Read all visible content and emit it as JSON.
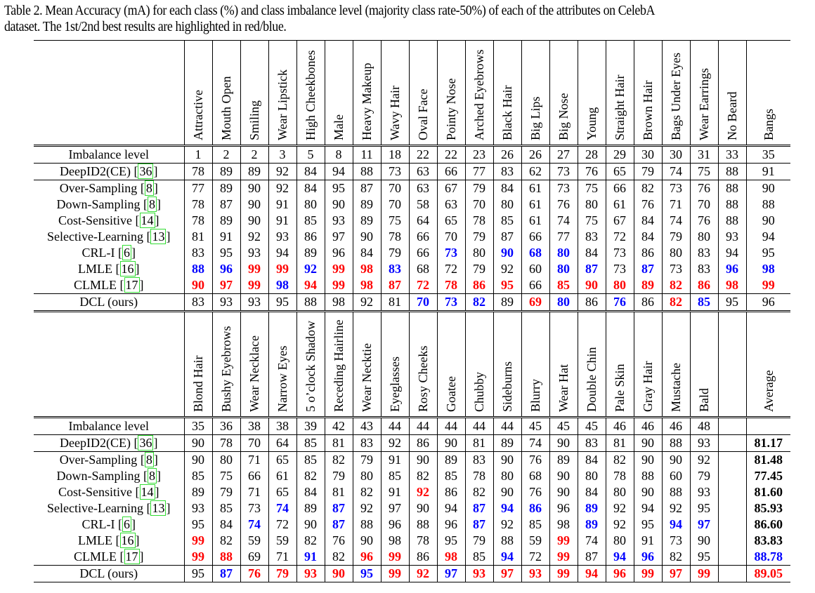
{
  "caption": {
    "line1": "Table 2. Mean Accuracy (mA) for each class (%) and class imbalance level (majority class rate-50%) of each of the attributes on CelebA",
    "line2": "dataset. The 1st/2nd best results are highlighted in red/blue."
  },
  "colors": {
    "first_best": "#ff0000",
    "second_best": "#0000ff",
    "citation_box": "#33dd33"
  },
  "tables": [
    {
      "attributes": [
        "Attractive",
        "Mouth Open",
        "Smiling",
        "Wear Lipstick",
        "High Cheekbones",
        "Male",
        "Heavy Makeup",
        "Wavy Hair",
        "Oval Face",
        "Pointy Nose",
        "Arched Eyebrows",
        "Black Hair",
        "Big Lips",
        "Big Nose",
        "Young",
        "Straight Hair",
        "Brown Hair",
        "Bags Under Eyes",
        "Wear Earrings",
        "No Beard",
        "Bangs"
      ],
      "imbalance": {
        "label": "Imbalance level",
        "values": [
          "1",
          "2",
          "2",
          "3",
          "5",
          "8",
          "11",
          "18",
          "22",
          "22",
          "23",
          "26",
          "26",
          "27",
          "28",
          "29",
          "30",
          "30",
          "31",
          "33",
          "35"
        ]
      },
      "rows": [
        {
          "name": "DeepID2(CE) ",
          "ref": "36",
          "values": [
            "78",
            "89",
            "89",
            "92",
            "84",
            "94",
            "88",
            "73",
            "63",
            "66",
            "77",
            "83",
            "62",
            "73",
            "76",
            "65",
            "79",
            "74",
            "75",
            "88",
            "91"
          ],
          "hl": [
            "",
            "",
            "",
            "",
            "",
            "",
            "",
            "",
            "",
            "",
            "",
            "",
            "",
            "",
            "",
            "",
            "",
            "",
            "",
            "",
            ""
          ]
        },
        {
          "name": "Over-Sampling ",
          "ref": "8",
          "values": [
            "77",
            "89",
            "90",
            "92",
            "84",
            "95",
            "87",
            "70",
            "63",
            "67",
            "79",
            "84",
            "61",
            "73",
            "75",
            "66",
            "82",
            "73",
            "76",
            "88",
            "90"
          ],
          "hl": [
            "",
            "",
            "",
            "",
            "",
            "",
            "",
            "",
            "",
            "",
            "",
            "",
            "",
            "",
            "",
            "",
            "",
            "",
            "",
            "",
            ""
          ]
        },
        {
          "name": "Down-Sampling ",
          "ref": "8",
          "values": [
            "78",
            "87",
            "90",
            "91",
            "80",
            "90",
            "89",
            "70",
            "58",
            "63",
            "70",
            "80",
            "61",
            "76",
            "80",
            "61",
            "76",
            "71",
            "70",
            "88",
            "88"
          ],
          "hl": [
            "",
            "",
            "",
            "",
            "",
            "",
            "",
            "",
            "",
            "",
            "",
            "",
            "",
            "",
            "",
            "",
            "",
            "",
            "",
            "",
            ""
          ]
        },
        {
          "name": "Cost-Sensitive ",
          "ref": "14",
          "values": [
            "78",
            "89",
            "90",
            "91",
            "85",
            "93",
            "89",
            "75",
            "64",
            "65",
            "78",
            "85",
            "61",
            "74",
            "75",
            "67",
            "84",
            "74",
            "76",
            "88",
            "90"
          ],
          "hl": [
            "",
            "",
            "",
            "",
            "",
            "",
            "",
            "",
            "",
            "",
            "",
            "",
            "",
            "",
            "",
            "",
            "",
            "",
            "",
            "",
            ""
          ]
        },
        {
          "name": "Selective-Learning ",
          "ref": "13",
          "values": [
            "81",
            "91",
            "92",
            "93",
            "86",
            "97",
            "90",
            "78",
            "66",
            "70",
            "79",
            "87",
            "66",
            "77",
            "83",
            "72",
            "84",
            "79",
            "80",
            "93",
            "94"
          ],
          "hl": [
            "",
            "",
            "",
            "",
            "",
            "",
            "",
            "",
            "",
            "",
            "",
            "",
            "",
            "",
            "",
            "",
            "",
            "",
            "",
            "",
            ""
          ]
        },
        {
          "name": "CRL-I ",
          "ref": "6",
          "values": [
            "83",
            "95",
            "93",
            "94",
            "89",
            "96",
            "84",
            "79",
            "66",
            "73",
            "80",
            "90",
            "68",
            "80",
            "84",
            "73",
            "86",
            "80",
            "83",
            "94",
            "95"
          ],
          "hl": [
            "",
            "",
            "",
            "",
            "",
            "",
            "",
            "",
            "",
            "b",
            "",
            "b",
            "b",
            "b",
            "",
            "",
            "",
            "",
            "",
            "",
            ""
          ]
        },
        {
          "name": "LMLE ",
          "ref": "16",
          "values": [
            "88",
            "96",
            "99",
            "99",
            "92",
            "99",
            "98",
            "83",
            "68",
            "72",
            "79",
            "92",
            "60",
            "80",
            "87",
            "73",
            "87",
            "73",
            "83",
            "96",
            "98"
          ],
          "hl": [
            "b",
            "b",
            "r",
            "r",
            "b",
            "r",
            "r",
            "b",
            "",
            "",
            "",
            "",
            "",
            "b",
            "b",
            "",
            "b",
            "",
            "",
            "b",
            "b"
          ]
        },
        {
          "name": "CLMLE ",
          "ref": "17",
          "values": [
            "90",
            "97",
            "99",
            "98",
            "94",
            "99",
            "98",
            "87",
            "72",
            "78",
            "86",
            "95",
            "66",
            "85",
            "90",
            "80",
            "89",
            "82",
            "86",
            "98",
            "99"
          ],
          "hl": [
            "r",
            "r",
            "r",
            "b",
            "r",
            "r",
            "r",
            "r",
            "r",
            "r",
            "r",
            "r",
            "",
            "r",
            "r",
            "r",
            "r",
            "r",
            "r",
            "r",
            "r"
          ]
        },
        {
          "name": "DCL (ours)",
          "ref": "",
          "values": [
            "83",
            "93",
            "93",
            "95",
            "88",
            "98",
            "92",
            "81",
            "70",
            "73",
            "82",
            "89",
            "69",
            "80",
            "86",
            "76",
            "86",
            "82",
            "85",
            "95",
            "96"
          ],
          "hl": [
            "",
            "",
            "",
            "",
            "",
            "",
            "",
            "",
            "b",
            "b",
            "b",
            "",
            "r",
            "b",
            "",
            "b",
            "",
            "r",
            "b",
            "",
            ""
          ]
        }
      ]
    },
    {
      "attributes": [
        "Blond Hair",
        "Bushy Eyebrows",
        "Wear Necklace",
        "Narrow Eyes",
        "5 o’clock Shadow",
        "Receding Hairline",
        "Wear Necktie",
        "Eyeglasses",
        "Rosy Cheeks",
        "Goatee",
        "Chubby",
        "Sideburns",
        "Blurry",
        "Wear Hat",
        "Double Chin",
        "Pale Skin",
        "Gray Hair",
        "Mustache",
        "Bald",
        "",
        "Average"
      ],
      "imbalance": {
        "label": "Imbalance level",
        "values": [
          "35",
          "36",
          "38",
          "38",
          "39",
          "42",
          "43",
          "44",
          "44",
          "44",
          "44",
          "44",
          "45",
          "45",
          "45",
          "46",
          "46",
          "46",
          "48",
          "",
          ""
        ]
      },
      "rows": [
        {
          "name": "DeepID2(CE) ",
          "ref": "36",
          "values": [
            "90",
            "78",
            "70",
            "64",
            "85",
            "81",
            "83",
            "92",
            "86",
            "90",
            "81",
            "89",
            "74",
            "90",
            "83",
            "81",
            "90",
            "88",
            "93",
            "",
            "81.17"
          ],
          "hl": [
            "",
            "",
            "",
            "",
            "",
            "",
            "",
            "",
            "",
            "",
            "",
            "",
            "",
            "",
            "",
            "",
            "",
            "",
            "",
            "",
            "k"
          ]
        },
        {
          "name": "Over-Sampling ",
          "ref": "8",
          "values": [
            "90",
            "80",
            "71",
            "65",
            "85",
            "82",
            "79",
            "91",
            "90",
            "89",
            "83",
            "90",
            "76",
            "89",
            "84",
            "82",
            "90",
            "90",
            "92",
            "",
            "81.48"
          ],
          "hl": [
            "",
            "",
            "",
            "",
            "",
            "",
            "",
            "",
            "",
            "",
            "",
            "",
            "",
            "",
            "",
            "",
            "",
            "",
            "",
            "",
            "k"
          ]
        },
        {
          "name": "Down-Sampling ",
          "ref": "8",
          "values": [
            "85",
            "75",
            "66",
            "61",
            "82",
            "79",
            "80",
            "85",
            "82",
            "85",
            "78",
            "80",
            "68",
            "90",
            "80",
            "78",
            "88",
            "60",
            "79",
            "",
            "77.45"
          ],
          "hl": [
            "",
            "",
            "",
            "",
            "",
            "",
            "",
            "",
            "",
            "",
            "",
            "",
            "",
            "",
            "",
            "",
            "",
            "",
            "",
            "",
            "k"
          ]
        },
        {
          "name": "Cost-Sensitive ",
          "ref": "14",
          "values": [
            "89",
            "79",
            "71",
            "65",
            "84",
            "81",
            "82",
            "91",
            "92",
            "86",
            "82",
            "90",
            "76",
            "90",
            "84",
            "80",
            "90",
            "88",
            "93",
            "",
            "81.60"
          ],
          "hl": [
            "",
            "",
            "",
            "",
            "",
            "",
            "",
            "",
            "r",
            "",
            "",
            "",
            "",
            "",
            "",
            "",
            "",
            "",
            "",
            "",
            "k"
          ]
        },
        {
          "name": "Selective-Learning ",
          "ref": "13",
          "values": [
            "93",
            "85",
            "73",
            "74",
            "89",
            "87",
            "92",
            "97",
            "90",
            "94",
            "87",
            "94",
            "86",
            "96",
            "89",
            "92",
            "94",
            "92",
            "95",
            "",
            "85.93"
          ],
          "hl": [
            "",
            "",
            "",
            "b",
            "",
            "b",
            "",
            "",
            "",
            "",
            "b",
            "b",
            "b",
            "",
            "b",
            "",
            "",
            "",
            "",
            "",
            "k"
          ]
        },
        {
          "name": "CRL-I ",
          "ref": "6",
          "values": [
            "95",
            "84",
            "74",
            "72",
            "90",
            "87",
            "88",
            "96",
            "88",
            "96",
            "87",
            "92",
            "85",
            "98",
            "89",
            "92",
            "95",
            "94",
            "97",
            "",
            "86.60"
          ],
          "hl": [
            "",
            "",
            "b",
            "",
            "",
            "b",
            "",
            "",
            "",
            "",
            "b",
            "",
            "",
            "",
            "b",
            "",
            "",
            "b",
            "b",
            "",
            "k"
          ]
        },
        {
          "name": "LMLE ",
          "ref": "16",
          "values": [
            "99",
            "82",
            "59",
            "59",
            "82",
            "76",
            "90",
            "98",
            "78",
            "95",
            "79",
            "88",
            "59",
            "99",
            "74",
            "80",
            "91",
            "73",
            "90",
            "",
            "83.83"
          ],
          "hl": [
            "r",
            "",
            "",
            "",
            "",
            "",
            "",
            "",
            "",
            "",
            "",
            "",
            "",
            "r",
            "",
            "",
            "",
            "",
            "",
            "",
            "k"
          ]
        },
        {
          "name": "CLMLE ",
          "ref": "17",
          "values": [
            "99",
            "88",
            "69",
            "71",
            "91",
            "82",
            "96",
            "99",
            "86",
            "98",
            "85",
            "94",
            "72",
            "99",
            "87",
            "94",
            "96",
            "82",
            "95",
            "",
            "88.78"
          ],
          "hl": [
            "r",
            "r",
            "",
            "",
            "b",
            "",
            "r",
            "r",
            "",
            "r",
            "",
            "b",
            "",
            "r",
            "",
            "b",
            "b",
            "",
            "",
            "",
            "b"
          ]
        },
        {
          "name": "DCL (ours)",
          "ref": "",
          "values": [
            "95",
            "87",
            "76",
            "79",
            "93",
            "90",
            "95",
            "99",
            "92",
            "97",
            "93",
            "97",
            "93",
            "99",
            "94",
            "96",
            "99",
            "97",
            "99",
            "",
            "89.05"
          ],
          "hl": [
            "",
            "b",
            "r",
            "r",
            "r",
            "r",
            "b",
            "r",
            "r",
            "b",
            "r",
            "r",
            "r",
            "r",
            "r",
            "r",
            "r",
            "r",
            "r",
            "",
            "r"
          ]
        }
      ]
    }
  ]
}
